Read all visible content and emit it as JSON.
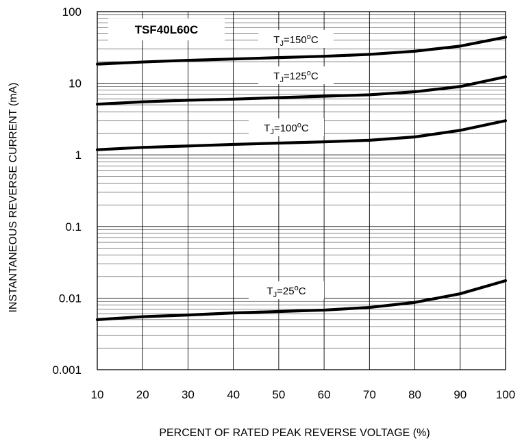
{
  "chart_data": {
    "type": "line",
    "title": "TSF40L60C",
    "xlabel": "PERCENT OF RATED PEAK REVERSE VOLTAGE (%)",
    "ylabel": "INSTANTANEOUS  REVERSE CURRENT (mA)",
    "x_ticks": [
      "10",
      "20",
      "30",
      "40",
      "50",
      "60",
      "70",
      "80",
      "90",
      "100"
    ],
    "y_ticks": [
      "100",
      "10",
      "1",
      "0.1",
      "0.01",
      "0.001"
    ],
    "xlim": [
      10,
      100
    ],
    "ylim": [
      0.001,
      100
    ],
    "y_scale": "log",
    "grid": true,
    "x": [
      10,
      20,
      30,
      40,
      50,
      60,
      70,
      80,
      90,
      100
    ],
    "series": [
      {
        "name": "T<sub>J</sub>=150<sup>o</sup>C",
        "label_prefix": "T",
        "label_sub": "J",
        "label_mid": "=150",
        "label_sup": "o",
        "label_suffix": "C",
        "values": [
          18.5,
          19.8,
          20.9,
          21.8,
          22.8,
          23.8,
          25.3,
          28.0,
          33.0,
          44.0
        ]
      },
      {
        "name": "T<sub>J</sub>=125<sup>o</sup>C",
        "label_prefix": "T",
        "label_sub": "J",
        "label_mid": "=125",
        "label_sup": "o",
        "label_suffix": "C",
        "values": [
          5.1,
          5.5,
          5.8,
          6.0,
          6.3,
          6.6,
          6.9,
          7.6,
          9.0,
          12.3
        ]
      },
      {
        "name": "T<sub>J</sub>=100<sup>o</sup>C",
        "label_prefix": "T",
        "label_sub": "J",
        "label_mid": "=100",
        "label_sup": "o",
        "label_suffix": "C",
        "values": [
          1.18,
          1.27,
          1.33,
          1.4,
          1.46,
          1.52,
          1.6,
          1.78,
          2.2,
          3.0
        ]
      },
      {
        "name": "T<sub>J</sub>=25<sup>o</sup>C",
        "label_prefix": "T",
        "label_sub": "J",
        "label_mid": "=25",
        "label_sup": "o",
        "label_suffix": "C",
        "values": [
          0.005,
          0.0055,
          0.0058,
          0.0062,
          0.0065,
          0.0068,
          0.0074,
          0.0087,
          0.0115,
          0.0175
        ]
      }
    ]
  }
}
